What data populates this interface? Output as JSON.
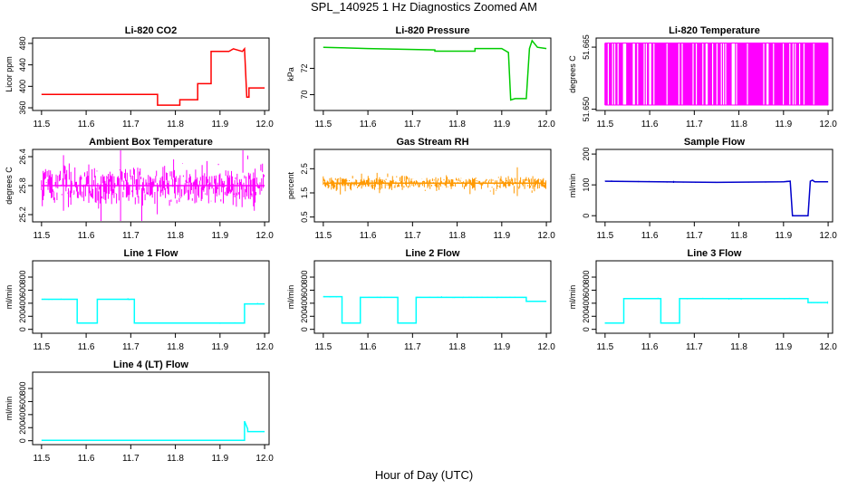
{
  "page_title": "SPL_140925  1 Hz Diagnostics Zoomed AM",
  "x_axis_label": "Hour of Day (UTC)",
  "chart_data": [
    {
      "type": "line",
      "title": "Li-820 CO2",
      "ylabel": "Licor ppm",
      "color": "#ff0000",
      "xlim": [
        11.48,
        12.01
      ],
      "ylim": [
        355,
        490
      ],
      "xticks": [
        "11.5",
        "11.6",
        "11.7",
        "11.8",
        "11.9",
        "12.0"
      ],
      "yticks": [
        "360",
        "400",
        "440",
        "480"
      ],
      "noise": 0,
      "x": [
        11.5,
        11.76,
        11.76,
        11.81,
        11.81,
        11.85,
        11.85,
        11.88,
        11.88,
        11.92,
        11.93,
        11.95,
        11.955,
        11.96,
        11.965,
        11.965,
        12.0
      ],
      "y": [
        385,
        385,
        365,
        365,
        375,
        375,
        405,
        405,
        465,
        465,
        470,
        465,
        470,
        380,
        380,
        397,
        397
      ]
    },
    {
      "type": "line",
      "title": "Li-820 Pressure",
      "ylabel": "kPa",
      "color": "#00cc00",
      "xlim": [
        11.48,
        12.01
      ],
      "ylim": [
        68.8,
        74.3
      ],
      "xticks": [
        "11.5",
        "11.6",
        "11.7",
        "11.8",
        "11.9",
        "12.0"
      ],
      "yticks": [
        "70",
        "72"
      ],
      "noise": 0,
      "x": [
        11.5,
        11.6,
        11.75,
        11.75,
        11.84,
        11.84,
        11.9,
        11.915,
        11.92,
        11.93,
        11.955,
        11.962,
        11.968,
        11.98,
        12.0
      ],
      "y": [
        73.6,
        73.5,
        73.4,
        73.3,
        73.3,
        73.5,
        73.5,
        73.2,
        69.6,
        69.7,
        69.7,
        73.5,
        74.1,
        73.6,
        73.5
      ]
    },
    {
      "type": "line",
      "title": "Li-820 Temperature",
      "ylabel": "degrees C",
      "color": "#ff00ff",
      "xlim": [
        11.48,
        12.01
      ],
      "ylim": [
        51.6497,
        51.6672
      ],
      "xticks": [
        "11.5",
        "11.6",
        "11.7",
        "11.8",
        "11.9",
        "12.0"
      ],
      "yticks": [
        "51.650",
        "51.665"
      ],
      "noise": 0,
      "quantized": true,
      "x": [
        11.5,
        12.0
      ],
      "y": [
        51.651,
        51.666
      ]
    },
    {
      "type": "line",
      "title": "Ambient Box Temperature",
      "ylabel": "degrees C",
      "color": "#ff00ff",
      "xlim": [
        11.48,
        12.01
      ],
      "ylim": [
        25.05,
        26.55
      ],
      "xticks": [
        "11.5",
        "11.6",
        "11.7",
        "11.8",
        "11.9",
        "12.0"
      ],
      "yticks": [
        "25.2",
        "25.8",
        "26.4"
      ],
      "noise": 0.5,
      "x": [
        11.5,
        12.0
      ],
      "y": [
        25.8,
        25.8
      ]
    },
    {
      "type": "line",
      "title": "Gas Stream RH",
      "ylabel": "percent",
      "color": "#ff9900",
      "xlim": [
        11.48,
        12.01
      ],
      "ylim": [
        0.3,
        3.3
      ],
      "xticks": [
        "11.5",
        "11.6",
        "11.7",
        "11.8",
        "11.9",
        "12.0"
      ],
      "yticks": [
        "0.5",
        "1.5",
        "2.5"
      ],
      "noise": 0.35,
      "x": [
        11.5,
        12.0
      ],
      "y": [
        1.9,
        1.9
      ]
    },
    {
      "type": "line",
      "title": "Sample Flow",
      "ylabel": "ml/min",
      "color": "#0000cc",
      "xlim": [
        11.48,
        12.01
      ],
      "ylim": [
        -20,
        215
      ],
      "xticks": [
        "11.5",
        "11.6",
        "11.7",
        "11.8",
        "11.9",
        "12.0"
      ],
      "yticks": [
        "0",
        "100",
        "200"
      ],
      "noise": 2,
      "x": [
        11.5,
        11.75,
        11.9,
        11.915,
        11.92,
        11.95,
        11.955,
        11.96,
        11.965,
        11.97,
        12.0
      ],
      "y": [
        112,
        108,
        110,
        112,
        0,
        0,
        0,
        112,
        115,
        110,
        110
      ]
    },
    {
      "type": "line",
      "title": "Line 1 Flow",
      "ylabel": "ml/min",
      "color": "#00ffff",
      "xlim": [
        11.48,
        12.01
      ],
      "ylim": [
        -60,
        1050
      ],
      "xticks": [
        "11.5",
        "11.6",
        "11.7",
        "11.8",
        "11.9",
        "12.0"
      ],
      "yticks": [
        "0",
        "200",
        "400",
        "600",
        "800"
      ],
      "noise": 10,
      "x": [
        11.5,
        11.58,
        11.58,
        11.625,
        11.625,
        11.708,
        11.708,
        11.955,
        11.955,
        12.0
      ],
      "y": [
        460,
        460,
        95,
        95,
        460,
        460,
        95,
        95,
        390,
        390
      ]
    },
    {
      "type": "line",
      "title": "Line 2 Flow",
      "ylabel": "ml/min",
      "color": "#00ffff",
      "xlim": [
        11.48,
        12.01
      ],
      "ylim": [
        -60,
        1050
      ],
      "xticks": [
        "11.5",
        "11.6",
        "11.7",
        "11.8",
        "11.9",
        "12.0"
      ],
      "yticks": [
        "0",
        "200",
        "400",
        "600",
        "800"
      ],
      "noise": 12,
      "x": [
        11.5,
        11.542,
        11.542,
        11.583,
        11.583,
        11.667,
        11.667,
        11.708,
        11.708,
        11.955,
        11.955,
        12.0
      ],
      "y": [
        500,
        500,
        95,
        95,
        490,
        490,
        95,
        95,
        490,
        490,
        430,
        430
      ]
    },
    {
      "type": "line",
      "title": "Line 3 Flow",
      "ylabel": "ml/min",
      "color": "#00ffff",
      "xlim": [
        11.48,
        12.01
      ],
      "ylim": [
        -60,
        1050
      ],
      "xticks": [
        "11.5",
        "11.6",
        "11.7",
        "11.8",
        "11.9",
        "12.0"
      ],
      "yticks": [
        "0",
        "200",
        "400",
        "600",
        "800"
      ],
      "noise": 10,
      "x": [
        11.5,
        11.542,
        11.542,
        11.625,
        11.625,
        11.667,
        11.667,
        11.955,
        11.955,
        12.0
      ],
      "y": [
        95,
        95,
        470,
        470,
        95,
        95,
        470,
        470,
        410,
        410
      ]
    },
    {
      "type": "line",
      "title": "Line 4 (LT) Flow",
      "ylabel": "ml/min",
      "color": "#00ffff",
      "xlim": [
        11.48,
        12.01
      ],
      "ylim": [
        -60,
        1050
      ],
      "xticks": [
        "11.5",
        "11.6",
        "11.7",
        "11.8",
        "11.9",
        "12.0"
      ],
      "yticks": [
        "0",
        "200",
        "400",
        "600",
        "800"
      ],
      "noise": 0,
      "x": [
        11.5,
        11.955,
        11.955,
        11.962,
        11.962,
        12.0
      ],
      "y": [
        5,
        5,
        300,
        180,
        140,
        140
      ]
    }
  ]
}
